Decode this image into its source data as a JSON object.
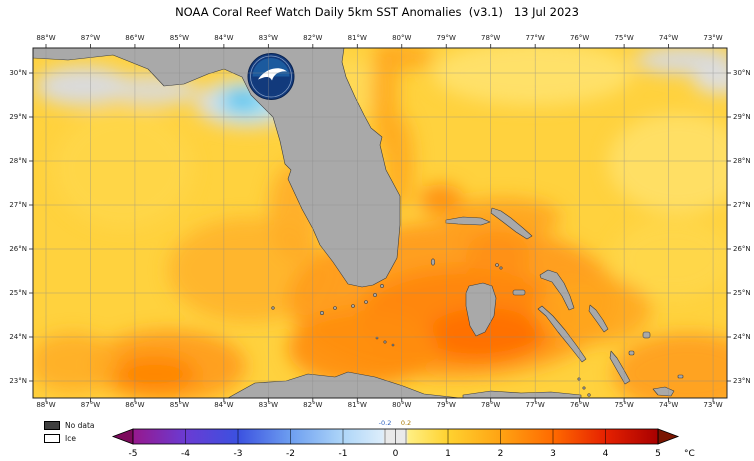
{
  "header": {
    "title": "NOAA Coral Reef Watch Daily 5km SST Anomalies  (v3.1)   13 Jul 2023"
  },
  "map": {
    "lon_labels": [
      "88°W",
      "87°W",
      "86°W",
      "85°W",
      "84°W",
      "83°W",
      "82°W",
      "81°W",
      "80°W",
      "79°W",
      "78°W",
      "77°W",
      "76°W",
      "75°W",
      "74°W",
      "73°W"
    ],
    "lat_labels": [
      "30°N",
      "29°N",
      "28°N",
      "27°N",
      "26°N",
      "25°N",
      "24°N",
      "23°N"
    ]
  },
  "legend": {
    "items": [
      {
        "name": "no-data",
        "label": "No data",
        "color": "#3f3f3f"
      },
      {
        "name": "ice",
        "label": "Ice",
        "color": "#ffffff"
      }
    ]
  },
  "colorbar": {
    "ticks": [
      "-5",
      "-4",
      "-3",
      "-2",
      "-1",
      "0",
      "1",
      "2",
      "3",
      "4",
      "5"
    ],
    "tick_values": [
      -5,
      -4,
      -3,
      -2,
      -1,
      0,
      1,
      2,
      3,
      4,
      5
    ],
    "sub_labels": [
      {
        "text": "-0.2",
        "value": -0.2,
        "color": "#2b5fbe"
      },
      {
        "text": "0.2",
        "value": 0.2,
        "color": "#a87700"
      }
    ],
    "unit": "°C",
    "range": [
      -5,
      5
    ],
    "left_arrow_color": "#7c0a5c",
    "right_arrow_color": "#7a1500",
    "stops": [
      {
        "v": -5,
        "c": "#97188d"
      },
      {
        "v": -4,
        "c": "#6a3bd3"
      },
      {
        "v": -3,
        "c": "#3b51e0"
      },
      {
        "v": -2,
        "c": "#6d9ef0"
      },
      {
        "v": -1,
        "c": "#aed6f8"
      },
      {
        "v": -0.25,
        "c": "#dcedfb"
      },
      {
        "v": -0.2,
        "c": "#eaeaea"
      },
      {
        "v": 0.2,
        "c": "#eaeaea"
      },
      {
        "v": 0.25,
        "c": "#ffef82"
      },
      {
        "v": 1,
        "c": "#ffd230"
      },
      {
        "v": 2,
        "c": "#ffa313"
      },
      {
        "v": 3,
        "c": "#ff6a00"
      },
      {
        "v": 4,
        "c": "#e62100"
      },
      {
        "v": 5,
        "c": "#a80000"
      }
    ]
  },
  "colors": {
    "ocean_base": "#ffd23e",
    "land": "#a9a9a9",
    "negative_patch": "#5bc8ee",
    "grid": "#8a8a8a"
  }
}
